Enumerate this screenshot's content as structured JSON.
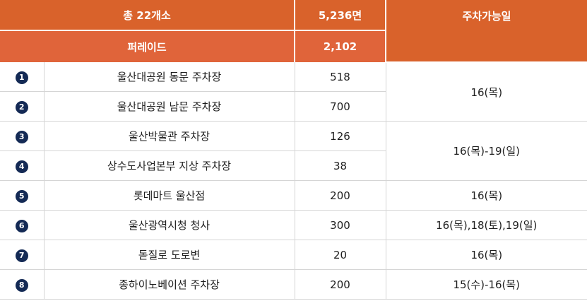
{
  "header": {
    "total_label": "총 22개소",
    "total_spaces": "5,236면",
    "available_days_label": "주차가능일",
    "parade_label": "퍼레이드",
    "parade_spaces": "2,102"
  },
  "rows": [
    {
      "num": "1",
      "name": "울산대공원 동문 주차장",
      "spaces": "518"
    },
    {
      "num": "2",
      "name": "울산대공원 남문 주차장",
      "spaces": "700"
    },
    {
      "num": "3",
      "name": "울산박물관 주차장",
      "spaces": "126"
    },
    {
      "num": "4",
      "name": "상수도사업본부 지상 주차장",
      "spaces": "38"
    },
    {
      "num": "5",
      "name": "롯데마트 울산점",
      "spaces": "200"
    },
    {
      "num": "6",
      "name": "울산광역시청 청사",
      "spaces": "300"
    },
    {
      "num": "7",
      "name": "돋질로 도로변",
      "spaces": "20"
    },
    {
      "num": "8",
      "name": "종하이노베이션 주차장",
      "spaces": "200"
    }
  ],
  "days": {
    "group_1_2": "16(목)",
    "group_3_4": "16(목)-19(일)",
    "row_5": "16(목)",
    "row_6": "16(목),18(토),19(일)",
    "row_7": "16(목)",
    "row_8": "15(수)-16(목)"
  },
  "colors": {
    "header_bg": "#d9622b",
    "badge_bg": "#142a55"
  }
}
